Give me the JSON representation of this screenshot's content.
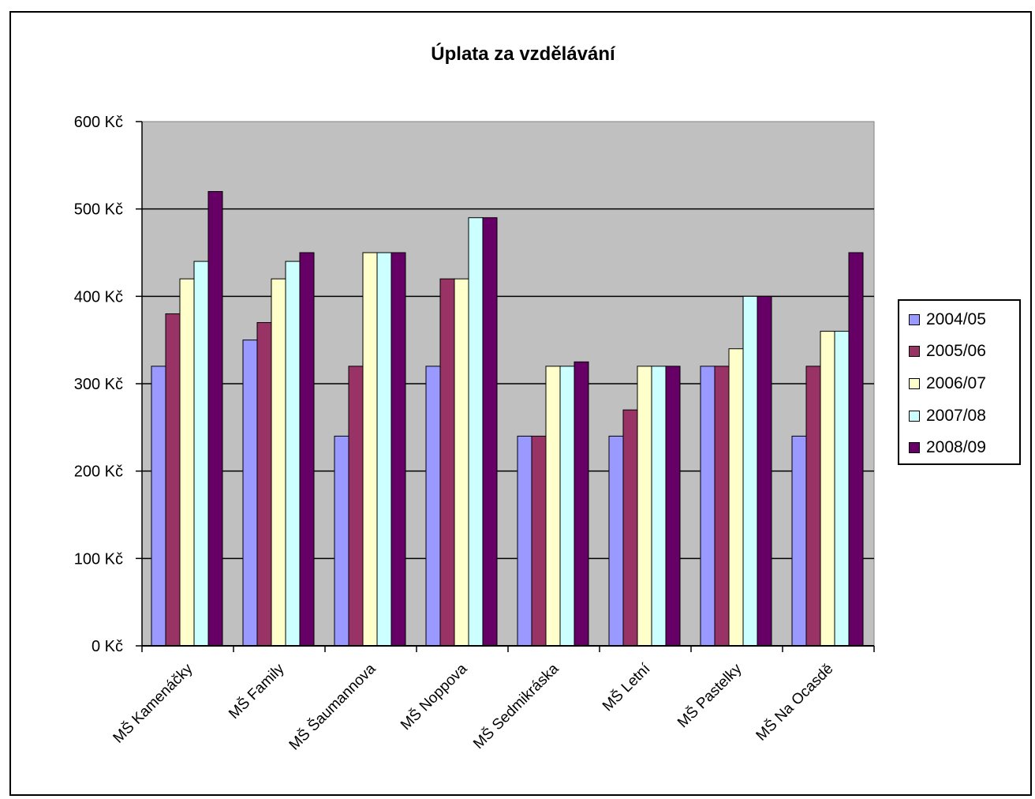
{
  "chart_data": {
    "type": "bar",
    "title": "Úplata za vzdělávání",
    "xlabel": "",
    "ylabel": "",
    "ylim": [
      0,
      600
    ],
    "yticks": [
      "0 Kč",
      "100 Kč",
      "200 Kč",
      "300 Kč",
      "400 Kč",
      "500 Kč",
      "600 Kč"
    ],
    "grid": true,
    "legend_position": "right",
    "categories": [
      "MŠ Kamenáčky",
      "MŠ Family",
      "MŠ Šaumannova",
      "MŠ Noppova",
      "MŠ Sedmikráska",
      "MŠ Letní",
      "MŠ Pastelky",
      "MŠ Na Ocasdě"
    ],
    "series": [
      {
        "name": "2004/05",
        "color": "#9999ff",
        "values": [
          320,
          350,
          240,
          320,
          240,
          240,
          320,
          240
        ]
      },
      {
        "name": "2005/06",
        "color": "#993366",
        "values": [
          380,
          370,
          320,
          420,
          240,
          270,
          320,
          320
        ]
      },
      {
        "name": "2006/07",
        "color": "#ffffcc",
        "values": [
          420,
          420,
          450,
          420,
          320,
          320,
          340,
          360
        ]
      },
      {
        "name": "2007/08",
        "color": "#ccffff",
        "values": [
          440,
          440,
          450,
          490,
          320,
          320,
          400,
          360
        ]
      },
      {
        "name": "2008/09",
        "color": "#660066",
        "values": [
          520,
          450,
          450,
          490,
          325,
          320,
          400,
          450
        ]
      }
    ]
  },
  "colors": {
    "plot_background": "#c0c0c0",
    "gridline": "#000000"
  }
}
